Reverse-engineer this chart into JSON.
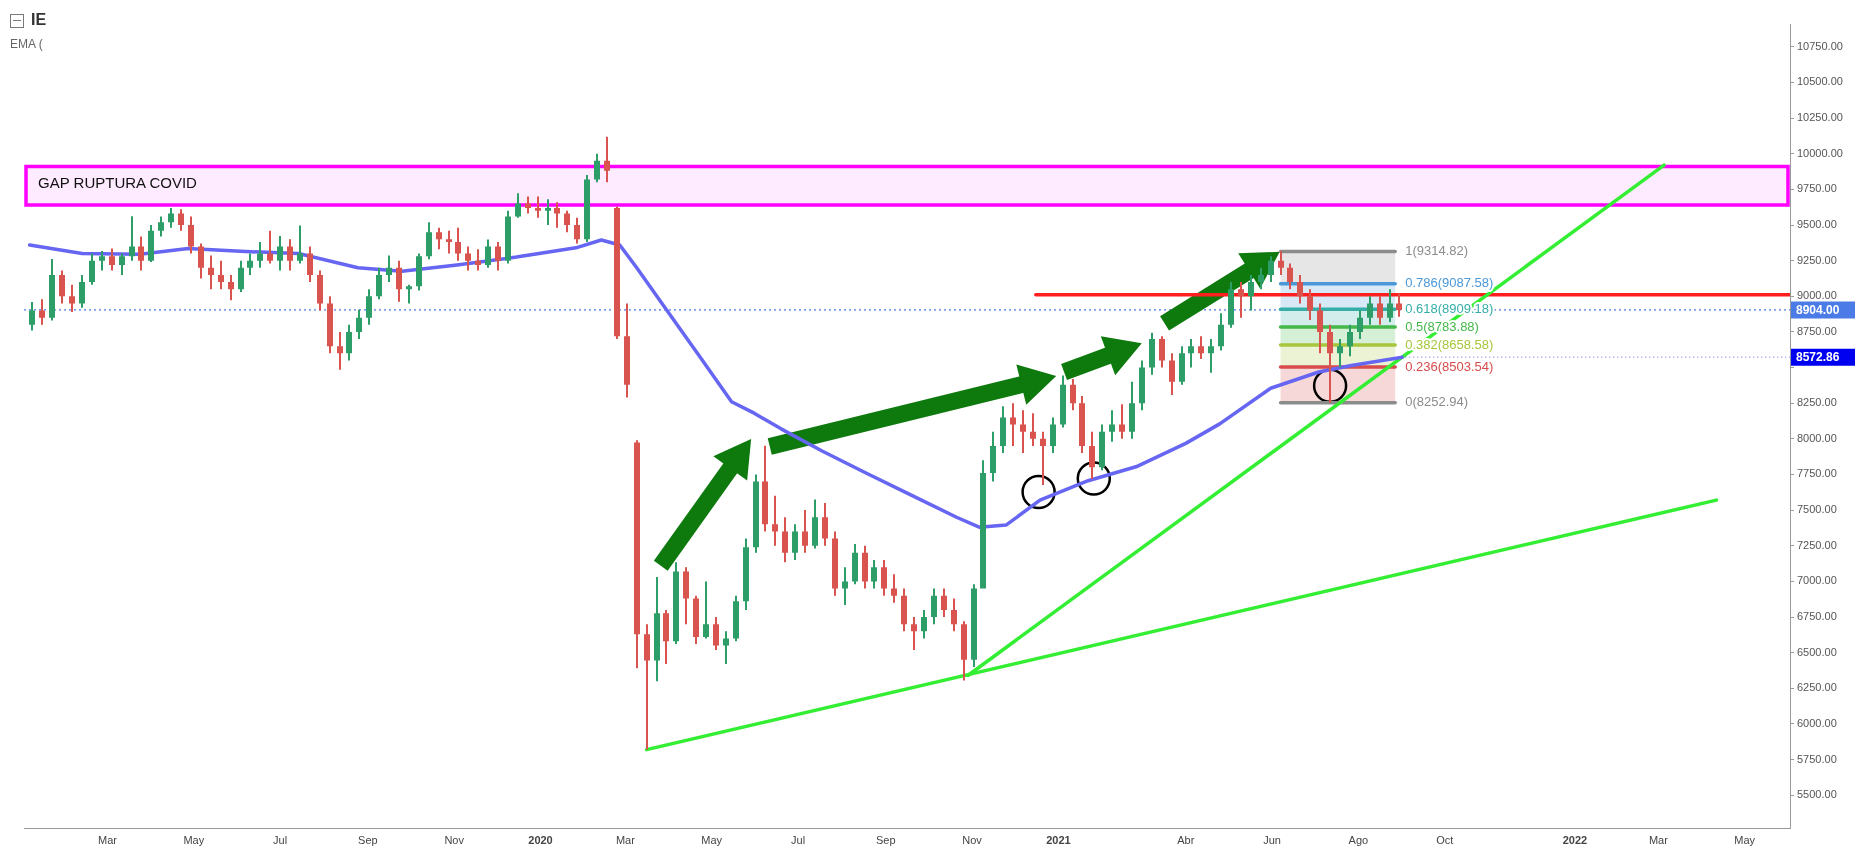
{
  "chart_data": {
    "type": "candlestick",
    "title": "IE",
    "subtitle": "EMA (",
    "xlim": [
      "2019-01-01",
      "2022-06-02"
    ],
    "ylim": [
      5270,
      10910
    ],
    "xticks": [
      {
        "value": "2019-03",
        "label": "Mar"
      },
      {
        "value": "2019-05",
        "label": "May"
      },
      {
        "value": "2019-07",
        "label": "Jul"
      },
      {
        "value": "2019-09",
        "label": "Sep"
      },
      {
        "value": "2019-11",
        "label": "Nov"
      },
      {
        "value": "2020-01",
        "label": "2020"
      },
      {
        "value": "2020-03",
        "label": "Mar"
      },
      {
        "value": "2020-05",
        "label": "May"
      },
      {
        "value": "2020-07",
        "label": "Jul"
      },
      {
        "value": "2020-09",
        "label": "Sep"
      },
      {
        "value": "2020-11",
        "label": "Nov"
      },
      {
        "value": "2021-01",
        "label": "2021"
      },
      {
        "value": "2021-04",
        "label": "Abr"
      },
      {
        "value": "2021-06",
        "label": "Jun"
      },
      {
        "value": "2021-08",
        "label": "Ago"
      },
      {
        "value": "2021-10",
        "label": "Oct"
      },
      {
        "value": "2022-01",
        "label": "2022"
      },
      {
        "value": "2022-03",
        "label": "Mar"
      },
      {
        "value": "2022-05",
        "label": "May"
      }
    ],
    "yticks": [
      {
        "value": 5500,
        "label": "5500.00"
      },
      {
        "value": 5750,
        "label": "5750.00"
      },
      {
        "value": 6000,
        "label": "6000.00"
      },
      {
        "value": 6250,
        "label": "6250.00"
      },
      {
        "value": 6500,
        "label": "6500.00"
      },
      {
        "value": 6750,
        "label": "6750.00"
      },
      {
        "value": 7000,
        "label": "7000.00"
      },
      {
        "value": 7250,
        "label": "7250.00"
      },
      {
        "value": 7500,
        "label": "7500.00"
      },
      {
        "value": 7750,
        "label": "7750.00"
      },
      {
        "value": 8000,
        "label": "8000.00"
      },
      {
        "value": 8250,
        "label": "8250.00"
      },
      {
        "value": 8500,
        "label": null
      },
      {
        "value": 8750,
        "label": "8750.00"
      },
      {
        "value": 9000,
        "label": "9000.00"
      },
      {
        "value": 9250,
        "label": "9250.00"
      },
      {
        "value": 9500,
        "label": "9500.00"
      },
      {
        "value": 9750,
        "label": "9750.00"
      },
      {
        "value": 10000,
        "label": "10000.00"
      },
      {
        "value": 10250,
        "label": "10250.00"
      },
      {
        "value": 10500,
        "label": "10500.00"
      },
      {
        "value": 10750,
        "label": "10750.00"
      }
    ],
    "series": [
      {
        "x": [
          "2019-01-07",
          "2019-01-14",
          "2019-01-21",
          "2019-01-28",
          "2019-02-04",
          "2019-02-11",
          "2019-02-18",
          "2019-02-25",
          "2019-03-04",
          "2019-03-11",
          "2019-03-18",
          "2019-03-25",
          "2019-04-01",
          "2019-04-08",
          "2019-04-15",
          "2019-04-22",
          "2019-04-29",
          "2019-05-06",
          "2019-05-13",
          "2019-05-20",
          "2019-05-27",
          "2019-06-03",
          "2019-06-10",
          "2019-06-17",
          "2019-06-24",
          "2019-07-01",
          "2019-07-08",
          "2019-07-15",
          "2019-07-22",
          "2019-07-29",
          "2019-08-05",
          "2019-08-12",
          "2019-08-19",
          "2019-08-26",
          "2019-09-02",
          "2019-09-09",
          "2019-09-16",
          "2019-09-23",
          "2019-09-30",
          "2019-10-07",
          "2019-10-14",
          "2019-10-21",
          "2019-10-28",
          "2019-11-04",
          "2019-11-11",
          "2019-11-18",
          "2019-11-25",
          "2019-12-02",
          "2019-12-09",
          "2019-12-16",
          "2019-12-23",
          "2019-12-30",
          "2020-01-06",
          "2020-01-13",
          "2020-01-20",
          "2020-01-27",
          "2020-02-03",
          "2020-02-10",
          "2020-02-17",
          "2020-02-24",
          "2020-03-02",
          "2020-03-09",
          "2020-03-16",
          "2020-03-23",
          "2020-03-30",
          "2020-04-06",
          "2020-04-13",
          "2020-04-20",
          "2020-04-27",
          "2020-05-04",
          "2020-05-11",
          "2020-05-18",
          "2020-05-25",
          "2020-06-01",
          "2020-06-08",
          "2020-06-15",
          "2020-06-22",
          "2020-06-29",
          "2020-07-06",
          "2020-07-13",
          "2020-07-20",
          "2020-07-27",
          "2020-08-03",
          "2020-08-10",
          "2020-08-17",
          "2020-08-24",
          "2020-08-31",
          "2020-09-07",
          "2020-09-14",
          "2020-09-21",
          "2020-09-28",
          "2020-10-05",
          "2020-10-12",
          "2020-10-19",
          "2020-10-26",
          "2020-11-02",
          "2020-11-09",
          "2020-11-16",
          "2020-11-23",
          "2020-11-30",
          "2020-12-07",
          "2020-12-14",
          "2020-12-21",
          "2020-12-28",
          "2021-01-04",
          "2021-01-11",
          "2021-01-18",
          "2021-01-25",
          "2021-02-01",
          "2021-02-08",
          "2021-02-15",
          "2021-02-22",
          "2021-03-01",
          "2021-03-08",
          "2021-03-15",
          "2021-03-22",
          "2021-03-29",
          "2021-04-05",
          "2021-04-12",
          "2021-04-19",
          "2021-04-26",
          "2021-05-03",
          "2021-05-10",
          "2021-05-17",
          "2021-05-24",
          "2021-05-31",
          "2021-06-07",
          "2021-06-14",
          "2021-06-21",
          "2021-06-28",
          "2021-07-05",
          "2021-07-12",
          "2021-07-19",
          "2021-07-26",
          "2021-08-02",
          "2021-08-09",
          "2021-08-16",
          "2021-08-23",
          "2021-08-30"
        ],
        "ohlc": [
          [
            8800,
            8960,
            8760,
            8900
          ],
          [
            8900,
            8980,
            8800,
            8850
          ],
          [
            8850,
            9261,
            8830,
            9150
          ],
          [
            9150,
            9180,
            8950,
            9000
          ],
          [
            9000,
            9080,
            8889,
            8950
          ],
          [
            8950,
            9150,
            8920,
            9100
          ],
          [
            9100,
            9300,
            9080,
            9250
          ],
          [
            9250,
            9318,
            9180,
            9280
          ],
          [
            9280,
            9335,
            9180,
            9220
          ],
          [
            9220,
            9300,
            9150,
            9280
          ],
          [
            9280,
            9561,
            9250,
            9350
          ],
          [
            9350,
            9420,
            9180,
            9250
          ],
          [
            9250,
            9500,
            9240,
            9460
          ],
          [
            9460,
            9560,
            9420,
            9520
          ],
          [
            9520,
            9620,
            9480,
            9580
          ],
          [
            9580,
            9610,
            9460,
            9500
          ],
          [
            9500,
            9560,
            9300,
            9350
          ],
          [
            9350,
            9370,
            9124,
            9200
          ],
          [
            9200,
            9286,
            9050,
            9150
          ],
          [
            9150,
            9250,
            9050,
            9100
          ],
          [
            9100,
            9150,
            8973,
            9050
          ],
          [
            9050,
            9250,
            9030,
            9200
          ],
          [
            9200,
            9300,
            9150,
            9250
          ],
          [
            9250,
            9380,
            9200,
            9300
          ],
          [
            9300,
            9460,
            9230,
            9250
          ],
          [
            9250,
            9423,
            9180,
            9350
          ],
          [
            9350,
            9400,
            9180,
            9250
          ],
          [
            9250,
            9496,
            9230,
            9300
          ],
          [
            9300,
            9350,
            9100,
            9150
          ],
          [
            9150,
            9180,
            8900,
            8950
          ],
          [
            8950,
            9000,
            8600,
            8650
          ],
          [
            8650,
            8750,
            8485,
            8600
          ],
          [
            8600,
            8800,
            8550,
            8750
          ],
          [
            8750,
            8905,
            8700,
            8850
          ],
          [
            8850,
            9050,
            8800,
            9000
          ],
          [
            9000,
            9200,
            8980,
            9150
          ],
          [
            9150,
            9286,
            9100,
            9200
          ],
          [
            9200,
            9250,
            8962,
            9050
          ],
          [
            9050,
            9080,
            8950,
            9070
          ],
          [
            9070,
            9300,
            9040,
            9280
          ],
          [
            9280,
            9520,
            9260,
            9450
          ],
          [
            9450,
            9480,
            9330,
            9400
          ],
          [
            9400,
            9460,
            9300,
            9380
          ],
          [
            9380,
            9480,
            9250,
            9300
          ],
          [
            9300,
            9350,
            9180,
            9250
          ],
          [
            9250,
            9330,
            9180,
            9220
          ],
          [
            9220,
            9399,
            9200,
            9350
          ],
          [
            9350,
            9380,
            9180,
            9250
          ],
          [
            9250,
            9600,
            9230,
            9560
          ],
          [
            9560,
            9723,
            9550,
            9650
          ],
          [
            9650,
            9700,
            9580,
            9620
          ],
          [
            9620,
            9700,
            9550,
            9600
          ],
          [
            9600,
            9680,
            9500,
            9620
          ],
          [
            9620,
            9660,
            9480,
            9580
          ],
          [
            9580,
            9600,
            9450,
            9500
          ],
          [
            9500,
            9550,
            9370,
            9400
          ],
          [
            9400,
            9850,
            9380,
            9820
          ],
          [
            9820,
            10000,
            9800,
            9950
          ],
          [
            9950,
            10119,
            9800,
            9880
          ],
          [
            9620,
            9630,
            8700,
            8720
          ],
          [
            8720,
            8950,
            8290,
            8380
          ],
          [
            7975,
            7990,
            6390,
            6630
          ],
          [
            6630,
            6700,
            5820,
            6445
          ],
          [
            6445,
            7030,
            6300,
            6777
          ],
          [
            6777,
            6800,
            6420,
            6580
          ],
          [
            6580,
            7134,
            6560,
            7070
          ],
          [
            7070,
            7100,
            6700,
            6880
          ],
          [
            6880,
            6900,
            6560,
            6610
          ],
          [
            6610,
            7000,
            6600,
            6700
          ],
          [
            6700,
            6750,
            6519,
            6550
          ],
          [
            6550,
            6650,
            6420,
            6600
          ],
          [
            6600,
            6900,
            6580,
            6860
          ],
          [
            6860,
            7300,
            6800,
            7240
          ],
          [
            7240,
            7750,
            7200,
            7700
          ],
          [
            7700,
            7951,
            7350,
            7400
          ],
          [
            7400,
            7600,
            7250,
            7350
          ],
          [
            7350,
            7450,
            7134,
            7200
          ],
          [
            7200,
            7400,
            7150,
            7350
          ],
          [
            7350,
            7500,
            7200,
            7250
          ],
          [
            7250,
            7574,
            7230,
            7450
          ],
          [
            7450,
            7550,
            7250,
            7300
          ],
          [
            7300,
            7350,
            6900,
            6950
          ],
          [
            6950,
            7100,
            6834,
            7000
          ],
          [
            7000,
            7263,
            6980,
            7200
          ],
          [
            7200,
            7250,
            6950,
            7000
          ],
          [
            7000,
            7150,
            6950,
            7100
          ],
          [
            7100,
            7150,
            6900,
            6950
          ],
          [
            6950,
            7050,
            6850,
            6900
          ],
          [
            6900,
            6950,
            6650,
            6700
          ],
          [
            6700,
            6750,
            6519,
            6650
          ],
          [
            6650,
            6800,
            6600,
            6750
          ],
          [
            6750,
            6950,
            6700,
            6900
          ],
          [
            6900,
            6950,
            6750,
            6800
          ],
          [
            6800,
            6880,
            6650,
            6700
          ],
          [
            6700,
            6720,
            6304,
            6450
          ],
          [
            6450,
            6980,
            6400,
            6950
          ],
          [
            6950,
            7850,
            6950,
            7760
          ],
          [
            7760,
            8050,
            7700,
            7950
          ],
          [
            7950,
            8229,
            7900,
            8150
          ],
          [
            8150,
            8250,
            7950,
            8100
          ],
          [
            8100,
            8200,
            7900,
            8050
          ],
          [
            8050,
            8180,
            7950,
            8000
          ],
          [
            8000,
            8050,
            7676,
            7950
          ],
          [
            7950,
            8150,
            7900,
            8100
          ],
          [
            8100,
            8444,
            8080,
            8380
          ],
          [
            8380,
            8420,
            8200,
            8250
          ],
          [
            8250,
            8300,
            7900,
            7950
          ],
          [
            7950,
            8050,
            7719,
            7800
          ],
          [
            7800,
            8100,
            7780,
            8050
          ],
          [
            8050,
            8200,
            7980,
            8100
          ],
          [
            8100,
            8242,
            8000,
            8050
          ],
          [
            8050,
            8400,
            8000,
            8250
          ],
          [
            8250,
            8550,
            8200,
            8500
          ],
          [
            8500,
            8744,
            8450,
            8700
          ],
          [
            8700,
            8720,
            8500,
            8550
          ],
          [
            8550,
            8600,
            8307,
            8400
          ],
          [
            8400,
            8650,
            8380,
            8600
          ],
          [
            8600,
            8700,
            8500,
            8650
          ],
          [
            8650,
            8720,
            8560,
            8600
          ],
          [
            8600,
            8700,
            8464,
            8650
          ],
          [
            8650,
            8881,
            8620,
            8800
          ],
          [
            8800,
            9100,
            8780,
            9050
          ],
          [
            9050,
            9100,
            8850,
            9000
          ],
          [
            9000,
            9150,
            8900,
            9100
          ],
          [
            9100,
            9200,
            9050,
            9150
          ],
          [
            9150,
            9280,
            9100,
            9250
          ],
          [
            9250,
            9315,
            9150,
            9200
          ],
          [
            9200,
            9230,
            9050,
            9100
          ],
          [
            9100,
            9150,
            8950,
            9000
          ],
          [
            9000,
            9050,
            8833,
            8900
          ],
          [
            8900,
            8950,
            8600,
            8750
          ],
          [
            8750,
            8800,
            8253,
            8600
          ],
          [
            8600,
            8700,
            8500,
            8650
          ],
          [
            8650,
            8800,
            8580,
            8750
          ],
          [
            8750,
            8900,
            8700,
            8850
          ],
          [
            8850,
            9000,
            8800,
            8950
          ],
          [
            8950,
            9000,
            8800,
            8850
          ],
          [
            8850,
            9050,
            8820,
            8950
          ],
          [
            8950,
            9019,
            8857,
            8904
          ]
        ],
        "colors": [
          "#2e9e68",
          "#d9534f",
          "#2e9e68",
          "#d9534f",
          "#d9534f",
          "#2e9e68",
          "#2e9e68",
          "#2e9e68",
          "#d9534f",
          "#2e9e68",
          "#2e9e68",
          "#d9534f",
          "#2e9e68",
          "#2e9e68",
          "#2e9e68",
          "#d9534f",
          "#d9534f",
          "#d9534f",
          "#d9534f",
          "#d9534f",
          "#d9534f",
          "#2e9e68",
          "#2e9e68",
          "#2e9e68",
          "#d9534f",
          "#2e9e68",
          "#d9534f",
          "#2e9e68",
          "#d9534f",
          "#d9534f",
          "#d9534f",
          "#d9534f",
          "#2e9e68",
          "#2e9e68",
          "#2e9e68",
          "#2e9e68",
          "#2e9e68",
          "#d9534f",
          "#2e9e68",
          "#2e9e68",
          "#2e9e68",
          "#d9534f",
          "#d9534f",
          "#d9534f",
          "#d9534f",
          "#d9534f",
          "#2e9e68",
          "#d9534f",
          "#2e9e68",
          "#2e9e68",
          "#d9534f",
          "#d9534f",
          "#2e9e68",
          "#d9534f",
          "#d9534f",
          "#d9534f",
          "#2e9e68",
          "#2e9e68",
          "#d9534f",
          "#d9534f",
          "#d9534f",
          "#d9534f",
          "#d9534f",
          "#2e9e68",
          "#d9534f",
          "#2e9e68",
          "#d9534f",
          "#d9534f",
          "#2e9e68",
          "#d9534f",
          "#2e9e68",
          "#2e9e68",
          "#2e9e68",
          "#2e9e68",
          "#d9534f",
          "#d9534f",
          "#d9534f",
          "#2e9e68",
          "#d9534f",
          "#2e9e68",
          "#d9534f",
          "#d9534f",
          "#2e9e68",
          "#2e9e68",
          "#d9534f",
          "#2e9e68",
          "#d9534f",
          "#d9534f",
          "#d9534f",
          "#d9534f",
          "#2e9e68",
          "#2e9e68",
          "#d9534f",
          "#d9534f",
          "#d9534f",
          "#2e9e68",
          "#2e9e68",
          "#2e9e68",
          "#2e9e68",
          "#d9534f",
          "#d9534f",
          "#d9534f",
          "#d9534f",
          "#2e9e68",
          "#2e9e68",
          "#d9534f",
          "#d9534f",
          "#d9534f",
          "#2e9e68",
          "#2e9e68",
          "#d9534f",
          "#2e9e68",
          "#2e9e68",
          "#2e9e68",
          "#d9534f",
          "#d9534f",
          "#2e9e68",
          "#2e9e68",
          "#d9534f",
          "#2e9e68",
          "#2e9e68",
          "#2e9e68",
          "#d9534f",
          "#2e9e68",
          "#2e9e68",
          "#2e9e68",
          "#d9534f",
          "#d9534f",
          "#d9534f",
          "#d9534f",
          "#d9534f",
          "#d9534f",
          "#2e9e68",
          "#2e9e68",
          "#2e9e68",
          "#2e9e68",
          "#d9534f",
          "#2e9e68",
          "#d9534f"
        ]
      },
      {
        "type": "line",
        "color": "#6666f2",
        "x": [
          "2019-01-05",
          "2019-02-11",
          "2019-03-24",
          "2019-04-27",
          "2019-06-03",
          "2019-07-14",
          "2019-08-25",
          "2019-09-25",
          "2019-11-03",
          "2019-12-15",
          "2020-01-26",
          "2020-02-13",
          "2020-02-26",
          "2020-03-09",
          "2020-03-29",
          "2020-04-23",
          "2020-05-15",
          "2020-05-31",
          "2020-06-19",
          "2020-07-18",
          "2020-08-18",
          "2020-09-19",
          "2020-10-21",
          "2020-11-06",
          "2020-11-25",
          "2020-12-19",
          "2021-01-22",
          "2021-02-26",
          "2021-04-01",
          "2021-04-25",
          "2021-05-31",
          "2021-07-04",
          "2021-07-27",
          "2021-09-01"
        ],
        "values": [
          9360,
          9300,
          9295,
          9335,
          9315,
          9300,
          9200,
          9175,
          9220,
          9275,
          9340,
          9395,
          9360,
          9200,
          8920,
          8570,
          8260,
          8180,
          8070,
          7915,
          7760,
          7605,
          7450,
          7380,
          7395,
          7570,
          7706,
          7808,
          7968,
          8105,
          8355,
          8469,
          8515,
          8572.86
        ]
      },
      {
        "type": "line",
        "color": "#33ee33",
        "x": [
          "2020-03-16",
          "2022-04-11"
        ],
        "values": [
          5820,
          7570
        ]
      },
      {
        "type": "line",
        "color": "#33ee33",
        "x": [
          "2020-10-29",
          "2022-03-05"
        ],
        "values": [
          6340,
          9920
        ]
      },
      {
        "type": "line",
        "color": "#ff1f1f",
        "x": [
          "2020-12-16",
          "2022-06-02"
        ],
        "values": [
          9010,
          9010
        ]
      },
      {
        "type": "line",
        "name": "1(9314.82)",
        "color": "#8c8c8c",
        "x": [
          "2021-06-07",
          "2021-08-27"
        ],
        "values": [
          9314.82,
          9314.82
        ],
        "upper": [
          9314.82,
          9314.82
        ],
        "lower": [
          9087.58,
          9087.58
        ]
      },
      {
        "type": "line",
        "name": "0.786(9087.58)",
        "color": "#4a98d8",
        "x": [
          "2021-06-07",
          "2021-08-27"
        ],
        "values": [
          9087.58,
          9087.58
        ],
        "upper": [
          9087.58,
          9087.58
        ],
        "lower": [
          8909.18,
          8909.18
        ]
      },
      {
        "type": "line",
        "name": "0.618(8909.18)",
        "color": "#35aea8",
        "x": [
          "2021-06-07",
          "2021-08-27"
        ],
        "values": [
          8909.18,
          8909.18
        ],
        "upper": [
          8909.18,
          8909.18
        ],
        "lower": [
          8783.88,
          8783.88
        ]
      },
      {
        "type": "line",
        "name": "0.5(8783.88)",
        "color": "#44b84a",
        "x": [
          "2021-06-07",
          "2021-08-27"
        ],
        "values": [
          8783.88,
          8783.88
        ],
        "upper": [
          8783.88,
          8783.88
        ],
        "lower": [
          8658.58,
          8658.58
        ]
      },
      {
        "type": "line",
        "name": "0.382(8658.58)",
        "color": "#a8c63c",
        "x": [
          "2021-06-07",
          "2021-08-27"
        ],
        "values": [
          8658.58,
          8658.58
        ],
        "upper": [
          8658.58,
          8658.58
        ],
        "lower": [
          8503.54,
          8503.54
        ]
      },
      {
        "type": "line",
        "name": "0.236(8503.54)",
        "color": "#d84c4c",
        "x": [
          "2021-06-07",
          "2021-08-27"
        ],
        "values": [
          8503.54,
          8503.54
        ],
        "upper": [
          8503.54,
          8503.54
        ],
        "lower": [
          8252.94,
          8252.94
        ]
      },
      {
        "type": "line",
        "name": "0(8252.94)",
        "color": "#8c8c8c",
        "x": [
          "2021-06-07",
          "2021-08-27"
        ],
        "values": [
          8252.94,
          8252.94
        ]
      },
      {
        "type": "line",
        "color": "#0e7a0e",
        "marker": "triangle",
        "x": [
          "2020-03-26",
          "2020-05-19"
        ],
        "values": [
          7110,
          7861
        ]
      },
      {
        "type": "line",
        "color": "#0e7a0e",
        "marker": "triangle",
        "x": [
          "2020-06-11",
          "2020-12-14"
        ],
        "values": [
          7947,
          8400
        ]
      },
      {
        "type": "line",
        "color": "#0e7a0e",
        "marker": "triangle",
        "x": [
          "2021-01-05",
          "2021-02-13"
        ],
        "values": [
          8469,
          8612
        ]
      },
      {
        "type": "line",
        "color": "#0e7a0e",
        "marker": "triangle",
        "x": [
          "2021-03-17",
          "2021-05-23"
        ],
        "values": [
          8810,
          9223
        ]
      },
      {
        "type": "scatter",
        "color": "#000000",
        "marker": "circle",
        "x": [
          "2020-12-18",
          "2021-01-26",
          "2021-07-12"
        ],
        "values": [
          7627,
          7722,
          8372
        ]
      }
    ],
    "ref_lines": [
      {
        "axis": "y",
        "value": 8904,
        "label": "8904.00",
        "color": "#4a7be6",
        "line_style": "dotted"
      }
    ],
    "bands": [
      {
        "axis": "y",
        "from": 9640,
        "to": 9910,
        "label": "GAP RUPTURA COVID",
        "color": "#ff00ff"
      }
    ],
    "annotations": [
      {
        "text": "8572.86",
        "x": "2021-09-01",
        "y": 8572.86
      }
    ]
  }
}
